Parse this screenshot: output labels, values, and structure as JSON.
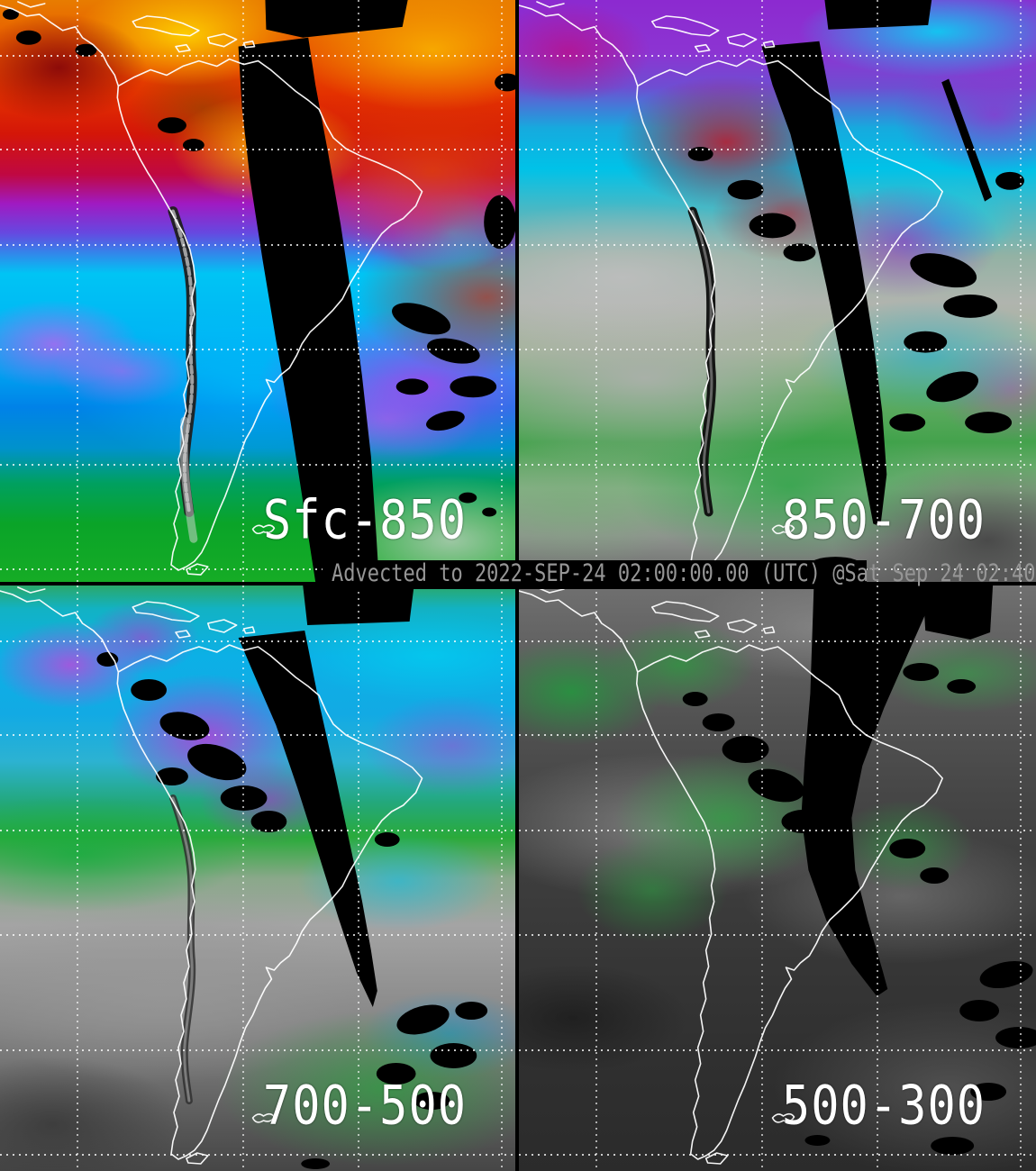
{
  "banner": {
    "text": "Advected to 2022-SEP-24 02:00:00.00 (UTC) @Sat Sep 24 02:40"
  },
  "panels": [
    {
      "id": "sfc-850",
      "label": "Sfc-850"
    },
    {
      "id": "850-700",
      "label": "850-700"
    },
    {
      "id": "700-500",
      "label": "700-500"
    },
    {
      "id": "500-300",
      "label": "500-300"
    }
  ],
  "colors": {
    "coastline": "#ffffff",
    "graticule": "#ffffff",
    "label_text": "#ffffff",
    "banner_text": "#969696",
    "banner_background": "#000000",
    "missing_data": "#000000"
  }
}
